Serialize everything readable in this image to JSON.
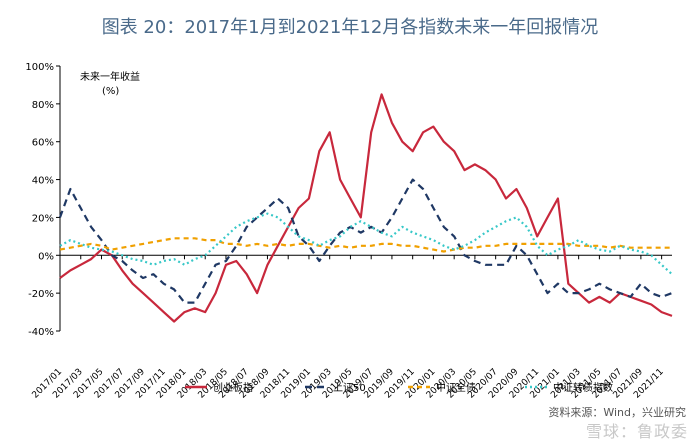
{
  "chart_data": {
    "type": "line",
    "title": "图表 20：2017年1月到2021年12月各指数未来一年回报情况",
    "ylabel_line1": "未来一年收益",
    "ylabel_line2": "(%)",
    "ylim": [
      -40,
      100
    ],
    "yticks": [
      "100%",
      "80%",
      "60%",
      "40%",
      "20%",
      "0%",
      "-20%",
      "-40%"
    ],
    "x_tick_labels": [
      "2017/01",
      "2017/03",
      "2017/05",
      "2017/07",
      "2017/09",
      "2017/11",
      "2018/01",
      "2018/03",
      "2018/05",
      "2018/07",
      "2018/09",
      "2018/11",
      "2019/01",
      "2019/03",
      "2019/05",
      "2019/07",
      "2019/09",
      "2019/11",
      "2020/01",
      "2020/03",
      "2020/05",
      "2020/07",
      "2020/09",
      "2020/11",
      "2021/01",
      "2021/03",
      "2021/05",
      "2021/07",
      "2021/09",
      "2021/11"
    ],
    "x_months": [
      0,
      1,
      2,
      3,
      4,
      5,
      6,
      7,
      8,
      9,
      10,
      11,
      12,
      13,
      14,
      15,
      16,
      17,
      18,
      19,
      20,
      21,
      22,
      23,
      24,
      25,
      26,
      27,
      28,
      29,
      30,
      31,
      32,
      33,
      34,
      35,
      36,
      37,
      38,
      39,
      40,
      41,
      42,
      43,
      44,
      45,
      46,
      47,
      48,
      49,
      50,
      51,
      52,
      53,
      54,
      55,
      56,
      57,
      58,
      59
    ],
    "series": [
      {
        "name": "创业板指",
        "color": "#c8283c",
        "dash": "solid",
        "values": [
          -12,
          -8,
          -5,
          -2,
          3,
          0,
          -8,
          -15,
          -20,
          -25,
          -30,
          -35,
          -30,
          -28,
          -30,
          -20,
          -5,
          -3,
          -10,
          -20,
          -5,
          5,
          15,
          25,
          30,
          55,
          65,
          40,
          30,
          20,
          65,
          85,
          70,
          60,
          55,
          65,
          68,
          60,
          55,
          45,
          48,
          45,
          40,
          30,
          35,
          25,
          10,
          20,
          30,
          -15,
          -20,
          -25,
          -22,
          -25,
          -20,
          -22,
          -24,
          -26,
          -30,
          -32
        ]
      },
      {
        "name": "上证50",
        "color": "#1f3864",
        "dash": "long",
        "values": [
          20,
          35,
          25,
          15,
          8,
          0,
          -3,
          -8,
          -12,
          -10,
          -15,
          -18,
          -25,
          -25,
          -15,
          -5,
          -3,
          5,
          15,
          20,
          25,
          30,
          25,
          10,
          5,
          -3,
          5,
          12,
          15,
          12,
          15,
          12,
          20,
          30,
          40,
          35,
          25,
          15,
          10,
          0,
          -3,
          -5,
          -5,
          -5,
          5,
          0,
          -10,
          -20,
          -15,
          -20,
          -20,
          -18,
          -15,
          -18,
          -20,
          -22,
          -15,
          -20,
          -22,
          -20
        ]
      },
      {
        "name": "中证全债",
        "color": "#f0a000",
        "dash": "dash",
        "values": [
          3,
          4,
          5,
          6,
          5,
          3,
          4,
          5,
          6,
          7,
          8,
          9,
          9,
          9,
          8,
          8,
          6,
          6,
          5,
          6,
          5,
          6,
          5,
          6,
          6,
          5,
          4,
          5,
          4,
          5,
          5,
          6,
          6,
          5,
          5,
          4,
          3,
          2,
          3,
          4,
          4,
          5,
          5,
          6,
          6,
          6,
          6,
          6,
          6,
          6,
          5,
          5,
          5,
          4,
          5,
          4,
          4,
          4,
          4,
          4
        ]
      },
      {
        "name": "中证转债指数",
        "color": "#38c8c8",
        "dash": "dot",
        "values": [
          5,
          8,
          6,
          4,
          3,
          2,
          0,
          -2,
          -3,
          -5,
          -3,
          -2,
          -5,
          -2,
          0,
          5,
          10,
          15,
          18,
          20,
          22,
          20,
          15,
          10,
          8,
          5,
          8,
          10,
          15,
          18,
          15,
          12,
          10,
          15,
          12,
          10,
          8,
          5,
          3,
          5,
          8,
          12,
          15,
          18,
          20,
          15,
          5,
          0,
          3,
          5,
          8,
          5,
          3,
          2,
          5,
          3,
          2,
          0,
          -5,
          -10
        ]
      }
    ],
    "legend_position": "bottom",
    "source_text": "资料来源：Wind，兴业研究",
    "watermark_text": "雪球：鲁政委"
  }
}
